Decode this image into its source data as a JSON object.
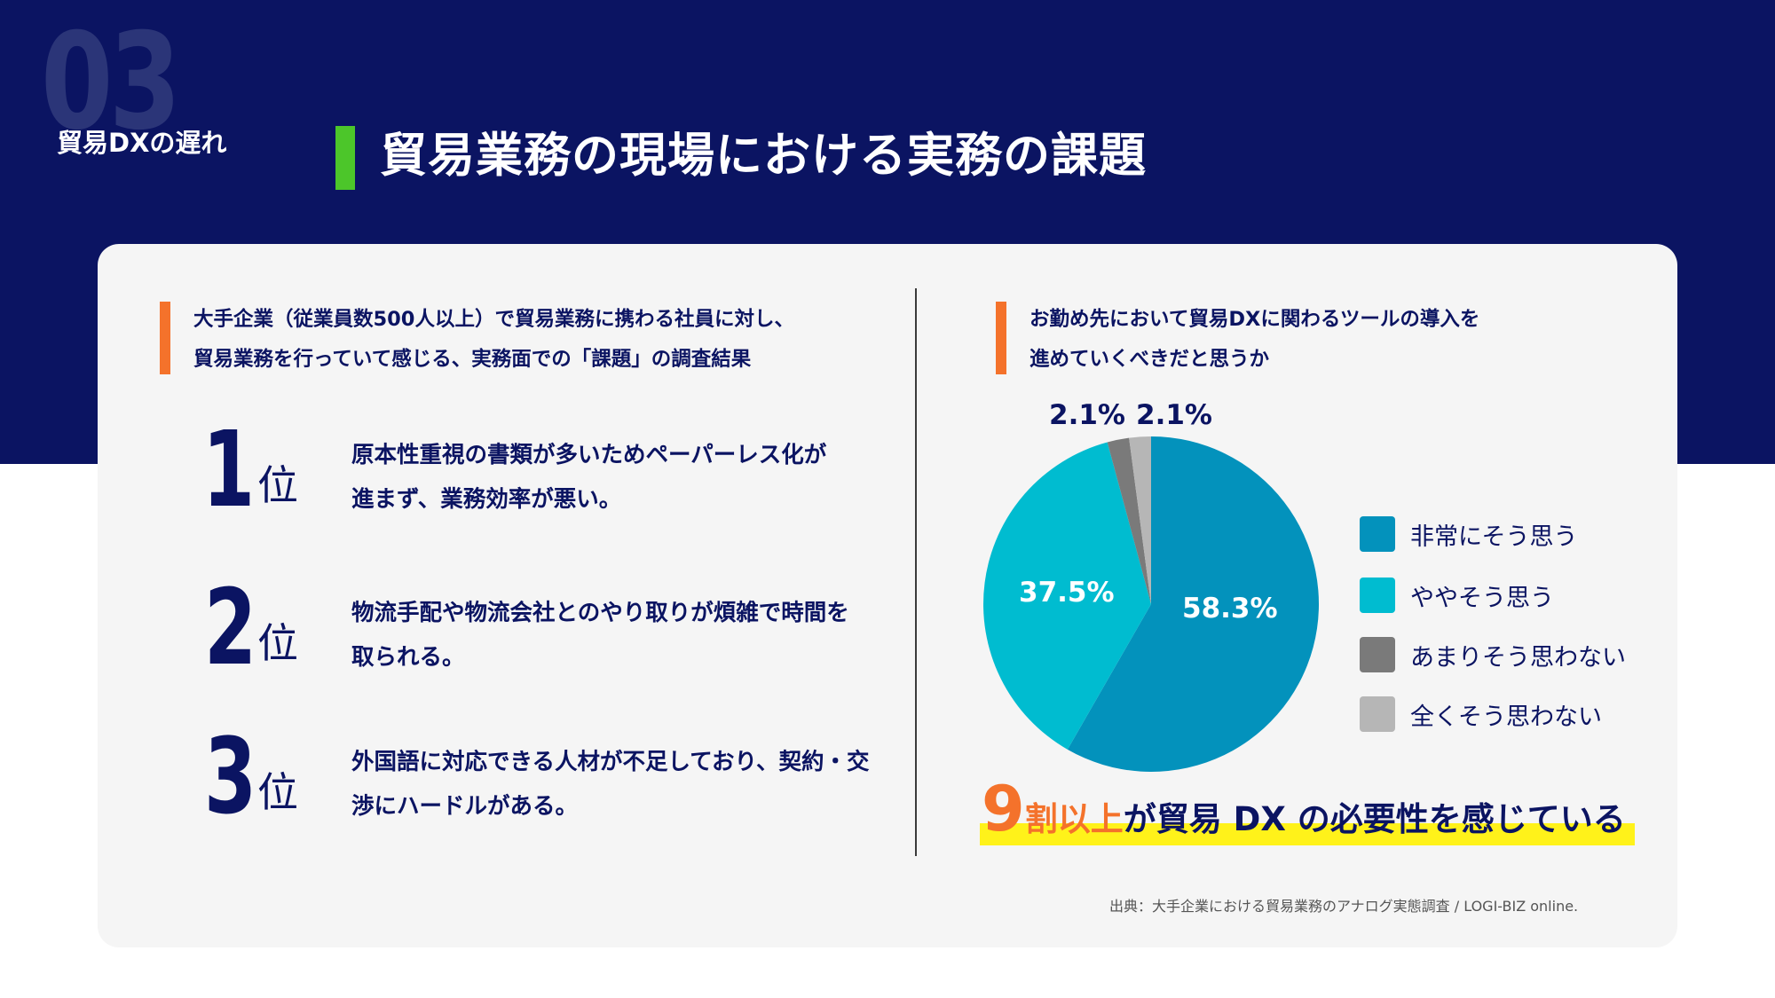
{
  "header": {
    "section_number": "03",
    "section_label": "貿易DXの遅れ",
    "title": "貿易業務の現場における実務の課題"
  },
  "left_panel": {
    "question_line1": "大手企業（従業員数500人以上）で貿易業務に携わる社員に対し、",
    "question_line2": "貿易業務を行っていて感じる、実務面での「課題」の調査結果",
    "rank_unit": "位",
    "rankings": [
      {
        "rank": "1",
        "line1": "原本性重視の書類が多いためペーパーレス化が",
        "line2": "進まず、業務効率が悪い。"
      },
      {
        "rank": "2",
        "line1": "物流手配や物流会社とのやり取りが煩雑で時間を",
        "line2": "取られる。"
      },
      {
        "rank": "3",
        "line1": "外国語に対応できる人材が不足しており、契約・交",
        "line2": "渉にハードルがある。"
      }
    ]
  },
  "right_panel": {
    "question_line1": "お勤め先において貿易DXに関わるツールの導入を",
    "question_line2": "進めていくべきだと思うか",
    "conclusion": {
      "number": "9",
      "lead": "割以上",
      "rest": "が貿易 DX の必要性を感じている"
    },
    "source": "出典：大手企業における貿易業務のアナログ実態調査 / LOGI-BIZ online."
  },
  "chart_data": {
    "type": "pie",
    "slices": [
      {
        "label": "非常にそう思う",
        "value": 58.3,
        "value_label": "58.3%",
        "color": "#0392bc"
      },
      {
        "label": "ややそう思う",
        "value": 37.5,
        "value_label": "37.5%",
        "color": "#00bcd0"
      },
      {
        "label": "あまりそう思わない",
        "value": 2.1,
        "value_label": "2.1%",
        "color": "#7a7a7a"
      },
      {
        "label": "全くそう思わない",
        "value": 2.1,
        "value_label": "2.1%",
        "color": "#b6b6b6"
      }
    ],
    "legend_position": "right"
  },
  "colors": {
    "navy": "#0b1462",
    "accent_green": "#4cc62a",
    "accent_orange": "#f4722b",
    "highlight_yellow": "#fff21a"
  }
}
